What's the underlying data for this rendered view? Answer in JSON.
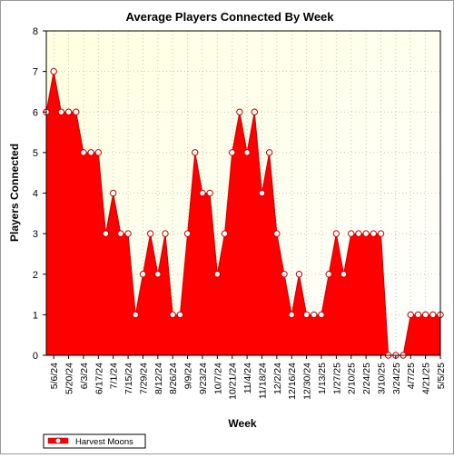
{
  "chart_data": {
    "type": "area",
    "title": "Average Players Connected By Week",
    "xlabel": "Week",
    "ylabel": "Players Connected",
    "ylim": [
      0,
      8
    ],
    "yticks": [
      0,
      1,
      2,
      3,
      4,
      5,
      6,
      7,
      8
    ],
    "grid": true,
    "legend_position": "bottom-left",
    "x_tick_labels": [
      "5/6/24",
      "5/20/24",
      "6/3/24",
      "6/17/24",
      "7/1/24",
      "7/15/24",
      "7/29/24",
      "8/12/24",
      "8/26/24",
      "9/9/24",
      "9/23/24",
      "10/7/24",
      "10/21/24",
      "11/4/24",
      "11/18/24",
      "12/2/24",
      "12/16/24",
      "12/30/24",
      "1/13/25",
      "1/27/25",
      "2/10/25",
      "2/24/25",
      "3/10/25",
      "3/24/25",
      "4/7/25",
      "4/21/25",
      "5/5/25"
    ],
    "x": [
      "4/29/24",
      "5/6/24",
      "5/13/24",
      "5/20/24",
      "5/27/24",
      "6/3/24",
      "6/10/24",
      "6/17/24",
      "6/24/24",
      "7/1/24",
      "7/8/24",
      "7/15/24",
      "7/22/24",
      "7/29/24",
      "8/5/24",
      "8/12/24",
      "8/19/24",
      "8/26/24",
      "9/2/24",
      "9/9/24",
      "9/16/24",
      "9/23/24",
      "9/30/24",
      "10/7/24",
      "10/14/24",
      "10/21/24",
      "10/28/24",
      "11/4/24",
      "11/11/24",
      "11/18/24",
      "11/25/24",
      "12/2/24",
      "12/9/24",
      "12/16/24",
      "12/23/24",
      "12/30/24",
      "1/6/25",
      "1/13/25",
      "1/20/25",
      "1/27/25",
      "2/3/25",
      "2/10/25",
      "2/17/25",
      "2/24/25",
      "3/3/25",
      "3/10/25",
      "3/17/25",
      "3/24/25",
      "3/31/25",
      "4/7/25",
      "4/14/25",
      "4/21/25",
      "4/28/25",
      "5/5/25"
    ],
    "series": [
      {
        "name": "Harvest Moons",
        "color": "#ff0000",
        "values": [
          6,
          7,
          6,
          6,
          6,
          5,
          5,
          5,
          3,
          4,
          3,
          3,
          1,
          2,
          3,
          2,
          3,
          1,
          1,
          3,
          5,
          4,
          4,
          2,
          3,
          5,
          6,
          5,
          6,
          4,
          5,
          3,
          2,
          1,
          2,
          1,
          1,
          1,
          2,
          3,
          2,
          3,
          3,
          3,
          3,
          3,
          0,
          0,
          0,
          1,
          1,
          1,
          1,
          1
        ]
      }
    ],
    "colors": {
      "plot_background_top_left": "#ffffe0",
      "plot_background_bottom_right": "#ffffff",
      "gridline": "#c8c8b4",
      "area_fill": "#ff0000",
      "area_line": "#cc0000"
    }
  }
}
